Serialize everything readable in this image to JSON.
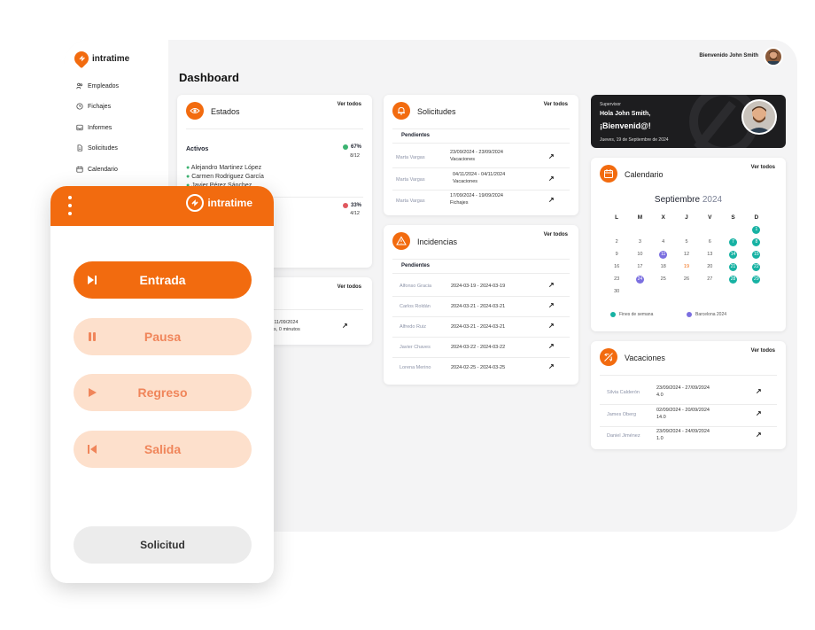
{
  "brand": {
    "name": "intratime",
    "accent": "#f26b0f",
    "accent_light": "#fde0cc",
    "teal": "#17b2a3",
    "purple": "#7b6fe0"
  },
  "sidebar": {
    "items": [
      {
        "label": "Empleados",
        "icon": "users-icon"
      },
      {
        "label": "Fichajes",
        "icon": "clock-icon"
      },
      {
        "label": "Informes",
        "icon": "inbox-icon"
      },
      {
        "label": "Solicitudes",
        "icon": "document-icon"
      },
      {
        "label": "Calendario",
        "icon": "calendar-icon"
      }
    ]
  },
  "header": {
    "welcome": "Bienvenido John Smith",
    "title": "Dashboard"
  },
  "estados": {
    "title": "Estados",
    "ver": "Ver todos",
    "activos_label": "Activos",
    "activos_pct": "67%",
    "activos_count": "8/12",
    "people": [
      "Alejandro Martinez López",
      "Carmen Rodriguez García",
      "Javier Pérez Sánchez"
    ],
    "second_pct": "33%",
    "second_count": "4/12"
  },
  "hidden_card": {
    "ver": "Ver todos",
    "date_line": "- 11/09/2024",
    "duration": "as, 0 minutos"
  },
  "solicitudes": {
    "title": "Solicitudes",
    "ver": "Ver todos",
    "section": "Pendientes",
    "rows": [
      {
        "name": "Marta Vargas",
        "dates": "23/09/2024 - 23/09/2024",
        "type": "Vacaciones"
      },
      {
        "name": "Marta Vargas",
        "dates": "04/11/2024 - 04/11/2024",
        "type": "Vacaciones"
      },
      {
        "name": "Marta Vargas",
        "dates": "17/09/2024 - 19/09/2024",
        "type": "Fichajes"
      }
    ]
  },
  "incidencias": {
    "title": "Incidencias",
    "ver": "Ver todos",
    "section": "Pendientes",
    "rows": [
      {
        "name": "Alfonso Gracia",
        "dates": "2024-03-19 - 2024-03-19"
      },
      {
        "name": "Carlos Roldán",
        "dates": "2024-03-21 - 2024-03-21"
      },
      {
        "name": "Alfredo Ruiz",
        "dates": "2024-03-21 - 2024-03-21"
      },
      {
        "name": "Javier Chaves",
        "dates": "2024-03-22 - 2024-03-22"
      },
      {
        "name": "Lorena Merino",
        "dates": "2024-02-25 - 2024-03-25"
      }
    ]
  },
  "promo": {
    "role": "Supervisor",
    "greeting": "Hola John Smith,",
    "welcome": "¡Bienvenid@!",
    "date": "Jueves, 19 de Septiembre de 2024"
  },
  "calendario": {
    "title": "Calendario",
    "ver": "Ver todos",
    "month": "Septiembre",
    "year": "2024",
    "weekdays": [
      "L",
      "M",
      "X",
      "J",
      "V",
      "S",
      "D"
    ],
    "weeks": [
      [
        "",
        "",
        "",
        "",
        "",
        "",
        "1"
      ],
      [
        "2",
        "3",
        "4",
        "5",
        "6",
        "7",
        "8"
      ],
      [
        "9",
        "10",
        "11",
        "12",
        "13",
        "14",
        "15"
      ],
      [
        "16",
        "17",
        "18",
        "19",
        "20",
        "21",
        "22"
      ],
      [
        "23",
        "24",
        "25",
        "26",
        "27",
        "28",
        "29"
      ],
      [
        "30",
        "",
        "",
        "",
        "",
        "",
        ""
      ]
    ],
    "legend": [
      "Fines de semana",
      "Barcelona 2024"
    ]
  },
  "vacaciones": {
    "title": "Vacaciones",
    "ver": "Ver todos",
    "rows": [
      {
        "name": "Silvia Calderón",
        "dates": "23/09/2024 - 27/09/2024",
        "days": "4.0"
      },
      {
        "name": "James Oberg",
        "dates": "02/09/2024 - 20/09/2024",
        "days": "14.0"
      },
      {
        "name": "Daniel Jiménez",
        "dates": "23/09/2024 - 24/09/2024",
        "days": "1.0"
      }
    ]
  },
  "mobile": {
    "brand": "intratime",
    "buttons": [
      "Entrada",
      "Pausa",
      "Regreso",
      "Salida"
    ],
    "solicitud": "Solicitud"
  }
}
